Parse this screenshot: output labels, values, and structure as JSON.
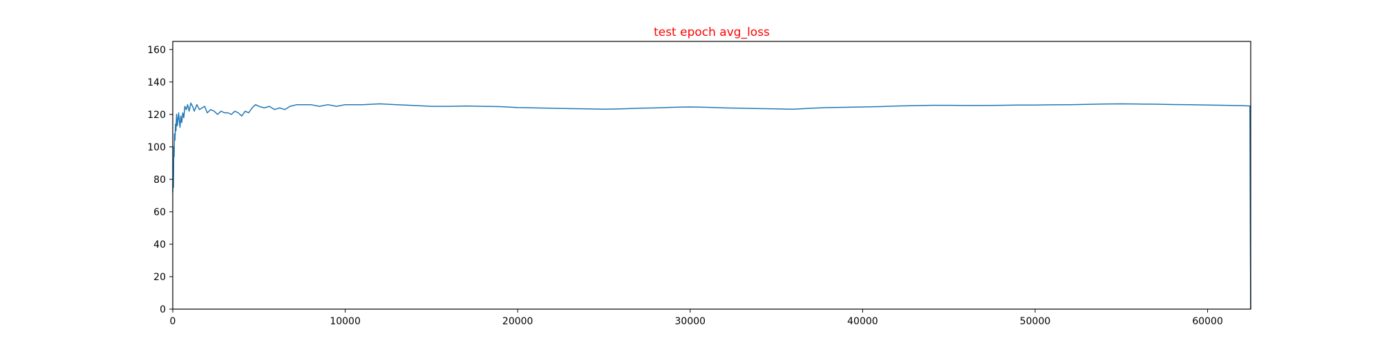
{
  "chart_data": {
    "type": "line",
    "title": "test epoch avg_loss",
    "xlabel": "",
    "ylabel": "",
    "xlim": [
      0,
      62500
    ],
    "ylim": [
      0,
      165
    ],
    "x_ticks": [
      0,
      10000,
      20000,
      30000,
      40000,
      50000,
      60000
    ],
    "y_ticks": [
      0,
      20,
      40,
      60,
      80,
      100,
      120,
      140,
      160
    ],
    "grid": false,
    "legend": "none",
    "colors": {
      "title": "#ff0000",
      "line": "#1f77b4",
      "axes": "#000000"
    },
    "series": [
      {
        "x": [
          0,
          20,
          40,
          60,
          80,
          100,
          130,
          160,
          190,
          220,
          260,
          300,
          340,
          380,
          420,
          470,
          520,
          580,
          640,
          700,
          780,
          860,
          950,
          1050,
          1150,
          1250,
          1400,
          1550,
          1700,
          1850,
          2000,
          2200,
          2400,
          2600,
          2800,
          3000,
          3200,
          3400,
          3600,
          3800,
          4000,
          4200,
          4400,
          4600,
          4800,
          5000,
          5300,
          5600,
          5900,
          6200,
          6500,
          6800,
          7200,
          7600,
          8000,
          8500,
          9000,
          9500,
          10000,
          11000,
          12000,
          13000,
          14000,
          15000,
          16000,
          17000,
          18000,
          19000,
          20000,
          21000,
          22000,
          23000,
          24000,
          25000,
          26000,
          27000,
          28000,
          29000,
          30000,
          31000,
          32000,
          33000,
          34000,
          35000,
          36000,
          37000,
          38000,
          39000,
          40000,
          41000,
          42000,
          43000,
          44000,
          45000,
          46000,
          47000,
          48000,
          49000,
          50000,
          51000,
          52000,
          53000,
          54000,
          55000,
          56000,
          57000,
          58000,
          59000,
          60000,
          61000,
          62000,
          62450,
          62480,
          62500
        ],
        "y": [
          72,
          88,
          75,
          100,
          94,
          108,
          104,
          114,
          110,
          120,
          113,
          117,
          121,
          116,
          112,
          119,
          115,
          121,
          118,
          125,
          123,
          126,
          122,
          127,
          125,
          122,
          126,
          123,
          124,
          125,
          121,
          123,
          122,
          120,
          122,
          121,
          121,
          120,
          122,
          121,
          119,
          122,
          121,
          124,
          126,
          125,
          124,
          125,
          123,
          124,
          123,
          125,
          126,
          126,
          126,
          125,
          126,
          125,
          126,
          126,
          126.5,
          126,
          125.5,
          125,
          125,
          125.2,
          125,
          124.8,
          124.2,
          124,
          123.8,
          123.6,
          123.4,
          123.2,
          123.4,
          123.8,
          124,
          124.4,
          124.6,
          124.4,
          124,
          123.8,
          123.6,
          123.4,
          123.2,
          123.8,
          124.2,
          124.4,
          124.6,
          124.8,
          125.2,
          125.4,
          125.6,
          125.6,
          125.5,
          125.5,
          125.6,
          125.8,
          125.8,
          125.9,
          126,
          126.2,
          126.4,
          126.5,
          126.4,
          126.3,
          126.1,
          126,
          125.8,
          125.6,
          125.4,
          125.2,
          40,
          0
        ]
      }
    ]
  }
}
